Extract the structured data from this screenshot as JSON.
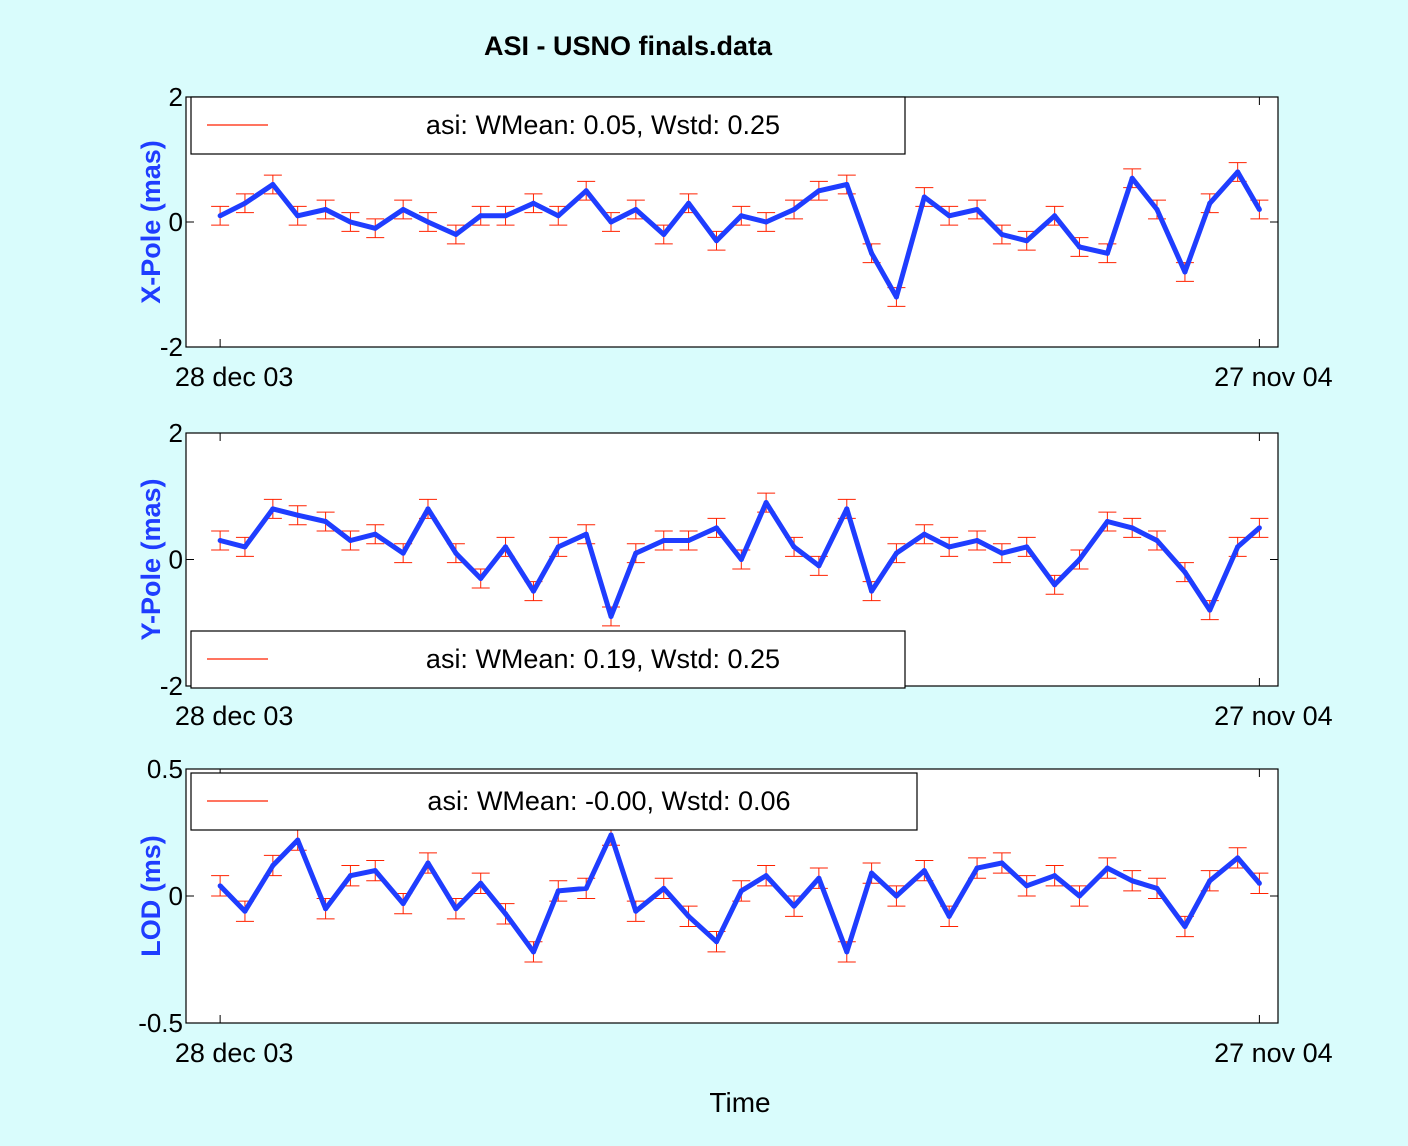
{
  "figure": {
    "title": "ASI - USNO finals.data",
    "xlabel": "Time",
    "background_color": "#d9fcfc",
    "axes_background_color": "#ffffff",
    "series_color": "#1f3dff",
    "errorbar_color": "#ff2200",
    "ylabel_color": "#1f3dff"
  },
  "chart_data": [
    {
      "type": "line",
      "title": "ASI - USNO finals.data",
      "xlabel": "",
      "ylabel": "X-Pole (mas)",
      "ylim": [
        -2,
        2
      ],
      "yticks": [
        -2,
        0,
        2
      ],
      "ytick_labels": [
        "-2",
        "0",
        "2"
      ],
      "xlim": [
        -11,
        341
      ],
      "xtick_positions": [
        0,
        335
      ],
      "xtick_labels": [
        "28 dec 03",
        "27 nov 04"
      ],
      "x_start_label": "28 dec 03",
      "x_end_label": "27 nov 04",
      "legend": {
        "label": "asi: WMean: 0.05, Wstd: 0.25",
        "placement": "top-left"
      },
      "series": [
        {
          "x": [
            0,
            8,
            17,
            25,
            34,
            42,
            50,
            59,
            67,
            76,
            84,
            92,
            101,
            109,
            118,
            126,
            134,
            143,
            151,
            160,
            168,
            176,
            185,
            193,
            202,
            210,
            218,
            227,
            235,
            244,
            252,
            260,
            269,
            277,
            286,
            294,
            302,
            311,
            319,
            328,
            335
          ],
          "y": [
            0.1,
            0.3,
            0.6,
            0.1,
            0.2,
            0.0,
            -0.1,
            0.2,
            0.0,
            -0.2,
            0.1,
            0.1,
            0.3,
            0.1,
            0.5,
            0.0,
            0.2,
            -0.2,
            0.3,
            -0.3,
            0.1,
            0.0,
            0.2,
            0.5,
            0.6,
            -0.5,
            -1.2,
            0.4,
            0.1,
            0.2,
            -0.2,
            -0.3,
            0.1,
            -0.4,
            -0.5,
            0.7,
            0.2,
            -0.8,
            0.3,
            0.8,
            0.2
          ],
          "error": 0.15
        }
      ]
    },
    {
      "type": "line",
      "ylabel": "Y-Pole (mas)",
      "ylim": [
        -2,
        2
      ],
      "yticks": [
        -2,
        0,
        2
      ],
      "ytick_labels": [
        "-2",
        "0",
        "2"
      ],
      "xlim": [
        -11,
        341
      ],
      "xtick_positions": [
        0,
        335
      ],
      "xtick_labels": [
        "28 dec 03",
        "27 nov 04"
      ],
      "legend": {
        "label": "asi: WMean: 0.19, Wstd: 0.25",
        "placement": "bottom-left"
      },
      "series": [
        {
          "x": [
            0,
            8,
            17,
            25,
            34,
            42,
            50,
            59,
            67,
            76,
            84,
            92,
            101,
            109,
            118,
            126,
            134,
            143,
            151,
            160,
            168,
            176,
            185,
            193,
            202,
            210,
            218,
            227,
            235,
            244,
            252,
            260,
            269,
            277,
            286,
            294,
            302,
            311,
            319,
            328,
            335
          ],
          "y": [
            0.3,
            0.2,
            0.8,
            0.7,
            0.6,
            0.3,
            0.4,
            0.1,
            0.8,
            0.1,
            -0.3,
            0.2,
            -0.5,
            0.2,
            0.4,
            -0.9,
            0.1,
            0.3,
            0.3,
            0.5,
            0.0,
            0.9,
            0.2,
            -0.1,
            0.8,
            -0.5,
            0.1,
            0.4,
            0.2,
            0.3,
            0.1,
            0.2,
            -0.4,
            0.0,
            0.6,
            0.5,
            0.3,
            -0.2,
            -0.8,
            0.2,
            0.5
          ],
          "error": 0.15
        }
      ]
    },
    {
      "type": "line",
      "ylabel": "LOD (ms)",
      "ylim": [
        -0.5,
        0.5
      ],
      "yticks": [
        -0.5,
        0,
        0.5
      ],
      "ytick_labels": [
        "-0.5",
        "0",
        "0.5"
      ],
      "xlim": [
        -11,
        341
      ],
      "xtick_positions": [
        0,
        335
      ],
      "xtick_labels": [
        "28 dec 03",
        "27 nov 04"
      ],
      "legend": {
        "label": "asi: WMean: -0.00, Wstd: 0.06",
        "placement": "top-left"
      },
      "series": [
        {
          "x": [
            0,
            8,
            17,
            25,
            34,
            42,
            50,
            59,
            67,
            76,
            84,
            92,
            101,
            109,
            118,
            126,
            134,
            143,
            151,
            160,
            168,
            176,
            185,
            193,
            202,
            210,
            218,
            227,
            235,
            244,
            252,
            260,
            269,
            277,
            286,
            294,
            302,
            311,
            319,
            328,
            335
          ],
          "y": [
            0.04,
            -0.06,
            0.12,
            0.22,
            -0.05,
            0.08,
            0.1,
            -0.03,
            0.13,
            -0.05,
            0.05,
            -0.07,
            -0.22,
            0.02,
            0.03,
            0.24,
            -0.06,
            0.03,
            -0.08,
            -0.18,
            0.02,
            0.08,
            -0.04,
            0.07,
            -0.22,
            0.09,
            0.0,
            0.1,
            -0.08,
            0.11,
            0.13,
            0.04,
            0.08,
            0.0,
            0.11,
            0.06,
            0.03,
            -0.12,
            0.06,
            0.15,
            0.05
          ],
          "error": 0.04
        }
      ]
    }
  ]
}
